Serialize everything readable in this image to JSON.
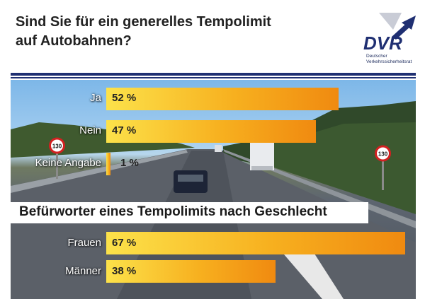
{
  "header": {
    "title_line1": "Sind Sie für ein generelles Tempolimit",
    "title_line2": "auf Autobahnen?"
  },
  "logo": {
    "wordmark": "DVR",
    "line1": "Deutscher",
    "line2": "Verkehrssicherheitsrat"
  },
  "colors": {
    "brand_navy": "#1f2f72",
    "bar_start": "#fce24a",
    "bar_end": "#f08a10"
  },
  "chart_data": [
    {
      "type": "bar",
      "orientation": "horizontal",
      "title": "Sind Sie für ein generelles Tempolimit auf Autobahnen?",
      "categories": [
        "Ja",
        "Nein",
        "Keine Angabe"
      ],
      "values": [
        52,
        47,
        1
      ],
      "value_labels": [
        "52 %",
        "47 %",
        "1 %"
      ],
      "unit": "%",
      "xlim": [
        0,
        67
      ]
    },
    {
      "type": "bar",
      "orientation": "horizontal",
      "title": "Befürworter eines Tempolimits nach Geschlecht",
      "categories": [
        "Frauen",
        "Männer"
      ],
      "values": [
        67,
        38
      ],
      "value_labels": [
        "67 %",
        "38 %"
      ],
      "unit": "%",
      "xlim": [
        0,
        67
      ]
    }
  ],
  "speed_sign": "130"
}
